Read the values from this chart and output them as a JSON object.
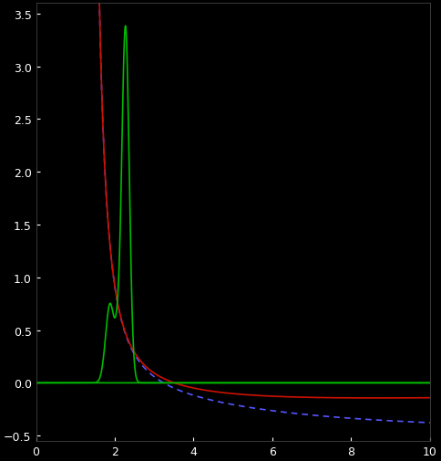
{
  "background_color": "#000000",
  "xlim": [
    0,
    10
  ],
  "ylim": [
    -0.55,
    3.6
  ],
  "xticks": [
    0,
    2,
    4,
    6,
    8,
    10
  ],
  "yticks": [
    -0.5,
    0,
    0.5,
    1,
    1.5,
    2,
    2.5,
    3,
    3.5
  ],
  "tick_label_color": "#ffffff",
  "figsize": [
    4.84,
    5.06
  ],
  "dpi": 100,
  "line_width": 1.2
}
